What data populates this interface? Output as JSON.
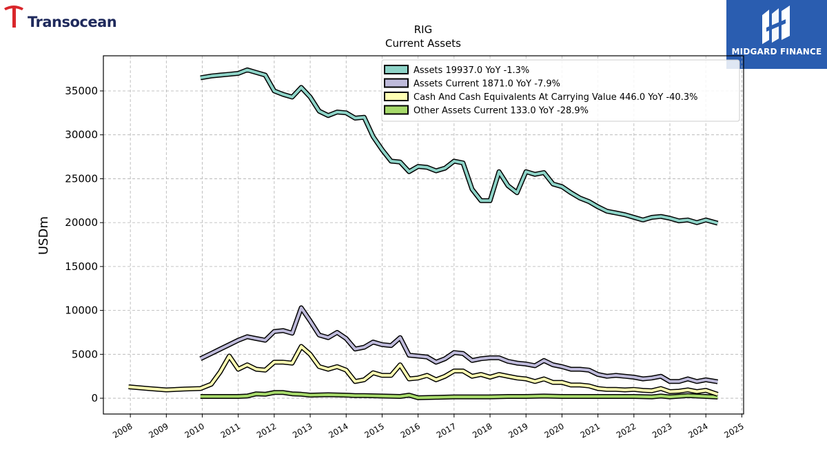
{
  "logos": {
    "left_brand": "Transocean",
    "right_brand": "MIDGARD FINANCE"
  },
  "colors": {
    "assets": "#8dd3c7",
    "assets_current": "#bebada",
    "cash": "#ffffb3",
    "other": "#a6d96a",
    "logo_right_bg": "#2a5db0",
    "logo_left_text": "#1f2a5c",
    "logo_left_mark": "#d9262b"
  },
  "chart_data": {
    "type": "line",
    "title": "RIG",
    "subtitle": "Current  Assets",
    "xlabel": "",
    "ylabel": "USDm",
    "xlim": [
      2007.25,
      2025.05
    ],
    "ylim": [
      -1800,
      39000
    ],
    "x_ticks": [
      "2008",
      "2009",
      "2010",
      "2011",
      "2012",
      "2013",
      "2014",
      "2015",
      "2016",
      "2017",
      "2018",
      "2019",
      "2020",
      "2021",
      "2022",
      "2023",
      "2024",
      "2025"
    ],
    "y_ticks": [
      0,
      5000,
      10000,
      15000,
      20000,
      25000,
      30000,
      35000
    ],
    "grid": true,
    "legend_position": "top-right",
    "series": [
      {
        "name": "Assets  19937.0 YoY -1.3%",
        "key": "assets",
        "points": [
          [
            2009.95,
            36500
          ],
          [
            2010.25,
            36700
          ],
          [
            2010.5,
            36800
          ],
          [
            2010.75,
            36900
          ],
          [
            2011.0,
            37000
          ],
          [
            2011.25,
            37400
          ],
          [
            2011.5,
            37100
          ],
          [
            2011.75,
            36800
          ],
          [
            2012.0,
            35000
          ],
          [
            2012.25,
            34600
          ],
          [
            2012.5,
            34300
          ],
          [
            2012.75,
            35400
          ],
          [
            2013.0,
            34300
          ],
          [
            2013.25,
            32700
          ],
          [
            2013.5,
            32200
          ],
          [
            2013.75,
            32600
          ],
          [
            2014.0,
            32500
          ],
          [
            2014.25,
            31900
          ],
          [
            2014.5,
            32000
          ],
          [
            2014.75,
            29800
          ],
          [
            2015.0,
            28300
          ],
          [
            2015.25,
            27000
          ],
          [
            2015.5,
            26900
          ],
          [
            2015.75,
            25800
          ],
          [
            2016.0,
            26400
          ],
          [
            2016.25,
            26300
          ],
          [
            2016.5,
            25900
          ],
          [
            2016.75,
            26200
          ],
          [
            2017.0,
            27000
          ],
          [
            2017.25,
            26800
          ],
          [
            2017.5,
            23800
          ],
          [
            2017.75,
            22500
          ],
          [
            2018.0,
            22500
          ],
          [
            2018.25,
            25800
          ],
          [
            2018.5,
            24200
          ],
          [
            2018.75,
            23400
          ],
          [
            2019.0,
            25800
          ],
          [
            2019.25,
            25500
          ],
          [
            2019.5,
            25700
          ],
          [
            2019.75,
            24400
          ],
          [
            2020.0,
            24100
          ],
          [
            2020.25,
            23400
          ],
          [
            2020.5,
            22800
          ],
          [
            2020.75,
            22400
          ],
          [
            2021.0,
            21800
          ],
          [
            2021.25,
            21300
          ],
          [
            2021.5,
            21100
          ],
          [
            2021.75,
            20900
          ],
          [
            2022.0,
            20600
          ],
          [
            2022.25,
            20300
          ],
          [
            2022.5,
            20600
          ],
          [
            2022.75,
            20700
          ],
          [
            2023.0,
            20500
          ],
          [
            2023.25,
            20200
          ],
          [
            2023.5,
            20300
          ],
          [
            2023.75,
            20000
          ],
          [
            2024.0,
            20300
          ],
          [
            2024.33,
            19937
          ]
        ]
      },
      {
        "name": "Assets Current  1871.0 YoY -7.9%",
        "key": "assets_current",
        "points": [
          [
            2009.95,
            4500
          ],
          [
            2010.25,
            5100
          ],
          [
            2010.5,
            5600
          ],
          [
            2010.75,
            6100
          ],
          [
            2011.0,
            6600
          ],
          [
            2011.25,
            7000
          ],
          [
            2011.5,
            6800
          ],
          [
            2011.75,
            6600
          ],
          [
            2012.0,
            7600
          ],
          [
            2012.25,
            7700
          ],
          [
            2012.5,
            7400
          ],
          [
            2012.75,
            10300
          ],
          [
            2013.0,
            8800
          ],
          [
            2013.25,
            7200
          ],
          [
            2013.5,
            6900
          ],
          [
            2013.75,
            7500
          ],
          [
            2014.0,
            6800
          ],
          [
            2014.25,
            5600
          ],
          [
            2014.5,
            5800
          ],
          [
            2014.75,
            6400
          ],
          [
            2015.0,
            6100
          ],
          [
            2015.25,
            6000
          ],
          [
            2015.5,
            6900
          ],
          [
            2015.75,
            4900
          ],
          [
            2016.0,
            4800
          ],
          [
            2016.25,
            4700
          ],
          [
            2016.5,
            4100
          ],
          [
            2016.75,
            4500
          ],
          [
            2017.0,
            5200
          ],
          [
            2017.25,
            5100
          ],
          [
            2017.5,
            4300
          ],
          [
            2017.75,
            4500
          ],
          [
            2018.0,
            4600
          ],
          [
            2018.25,
            4600
          ],
          [
            2018.5,
            4200
          ],
          [
            2018.75,
            4000
          ],
          [
            2019.0,
            3900
          ],
          [
            2019.25,
            3700
          ],
          [
            2019.5,
            4300
          ],
          [
            2019.75,
            3800
          ],
          [
            2020.0,
            3600
          ],
          [
            2020.25,
            3300
          ],
          [
            2020.5,
            3300
          ],
          [
            2020.75,
            3200
          ],
          [
            2021.0,
            2700
          ],
          [
            2021.25,
            2500
          ],
          [
            2021.5,
            2600
          ],
          [
            2021.75,
            2500
          ],
          [
            2022.0,
            2400
          ],
          [
            2022.25,
            2200
          ],
          [
            2022.5,
            2300
          ],
          [
            2022.75,
            2500
          ],
          [
            2023.0,
            1900
          ],
          [
            2023.25,
            1900
          ],
          [
            2023.5,
            2200
          ],
          [
            2023.75,
            1900
          ],
          [
            2024.0,
            2100
          ],
          [
            2024.33,
            1871
          ]
        ]
      },
      {
        "name": "Cash And Cash Equivalents At Carrying Value  446.0 YoY -40.3%",
        "key": "cash",
        "points": [
          [
            2007.95,
            1300
          ],
          [
            2008.5,
            1100
          ],
          [
            2009.0,
            950
          ],
          [
            2009.5,
            1050
          ],
          [
            2009.95,
            1100
          ],
          [
            2010.25,
            1600
          ],
          [
            2010.5,
            3000
          ],
          [
            2010.75,
            4800
          ],
          [
            2011.0,
            3300
          ],
          [
            2011.25,
            3800
          ],
          [
            2011.5,
            3300
          ],
          [
            2011.75,
            3200
          ],
          [
            2012.0,
            4100
          ],
          [
            2012.25,
            4100
          ],
          [
            2012.5,
            4000
          ],
          [
            2012.75,
            5900
          ],
          [
            2013.0,
            5000
          ],
          [
            2013.25,
            3600
          ],
          [
            2013.5,
            3300
          ],
          [
            2013.75,
            3600
          ],
          [
            2014.0,
            3200
          ],
          [
            2014.25,
            1900
          ],
          [
            2014.5,
            2100
          ],
          [
            2014.75,
            2900
          ],
          [
            2015.0,
            2600
          ],
          [
            2015.25,
            2600
          ],
          [
            2015.5,
            3800
          ],
          [
            2015.75,
            2200
          ],
          [
            2016.0,
            2300
          ],
          [
            2016.25,
            2600
          ],
          [
            2016.5,
            2100
          ],
          [
            2016.75,
            2500
          ],
          [
            2017.0,
            3100
          ],
          [
            2017.25,
            3100
          ],
          [
            2017.5,
            2500
          ],
          [
            2017.75,
            2700
          ],
          [
            2018.0,
            2400
          ],
          [
            2018.25,
            2700
          ],
          [
            2018.5,
            2500
          ],
          [
            2018.75,
            2300
          ],
          [
            2019.0,
            2200
          ],
          [
            2019.25,
            1900
          ],
          [
            2019.5,
            2200
          ],
          [
            2019.75,
            1800
          ],
          [
            2020.0,
            1800
          ],
          [
            2020.25,
            1500
          ],
          [
            2020.5,
            1500
          ],
          [
            2020.75,
            1400
          ],
          [
            2021.0,
            1100
          ],
          [
            2021.25,
            1000
          ],
          [
            2021.5,
            1000
          ],
          [
            2021.75,
            950
          ],
          [
            2022.0,
            1000
          ],
          [
            2022.25,
            900
          ],
          [
            2022.5,
            850
          ],
          [
            2022.75,
            1100
          ],
          [
            2023.0,
            750
          ],
          [
            2023.25,
            800
          ],
          [
            2023.5,
            950
          ],
          [
            2023.75,
            750
          ],
          [
            2024.0,
            900
          ],
          [
            2024.33,
            446
          ]
        ]
      },
      {
        "name": "Other Assets Current  133.0 YoY -28.9%",
        "key": "other",
        "points": [
          [
            2009.95,
            200
          ],
          [
            2010.5,
            200
          ],
          [
            2011.0,
            200
          ],
          [
            2011.25,
            250
          ],
          [
            2011.5,
            500
          ],
          [
            2011.75,
            450
          ],
          [
            2012.0,
            650
          ],
          [
            2012.25,
            650
          ],
          [
            2012.5,
            500
          ],
          [
            2012.75,
            450
          ],
          [
            2013.0,
            350
          ],
          [
            2013.5,
            400
          ],
          [
            2014.0,
            350
          ],
          [
            2014.25,
            300
          ],
          [
            2014.5,
            300
          ],
          [
            2015.0,
            250
          ],
          [
            2015.5,
            200
          ],
          [
            2015.75,
            350
          ],
          [
            2016.0,
            50
          ],
          [
            2016.5,
            100
          ],
          [
            2017.0,
            150
          ],
          [
            2017.5,
            150
          ],
          [
            2018.0,
            150
          ],
          [
            2018.5,
            200
          ],
          [
            2019.0,
            200
          ],
          [
            2019.5,
            250
          ],
          [
            2020.0,
            200
          ],
          [
            2020.5,
            200
          ],
          [
            2021.0,
            200
          ],
          [
            2021.5,
            200
          ],
          [
            2022.0,
            200
          ],
          [
            2022.5,
            150
          ],
          [
            2022.75,
            250
          ],
          [
            2023.0,
            150
          ],
          [
            2023.5,
            300
          ],
          [
            2023.75,
            250
          ],
          [
            2024.0,
            200
          ],
          [
            2024.33,
            133
          ]
        ]
      }
    ]
  }
}
